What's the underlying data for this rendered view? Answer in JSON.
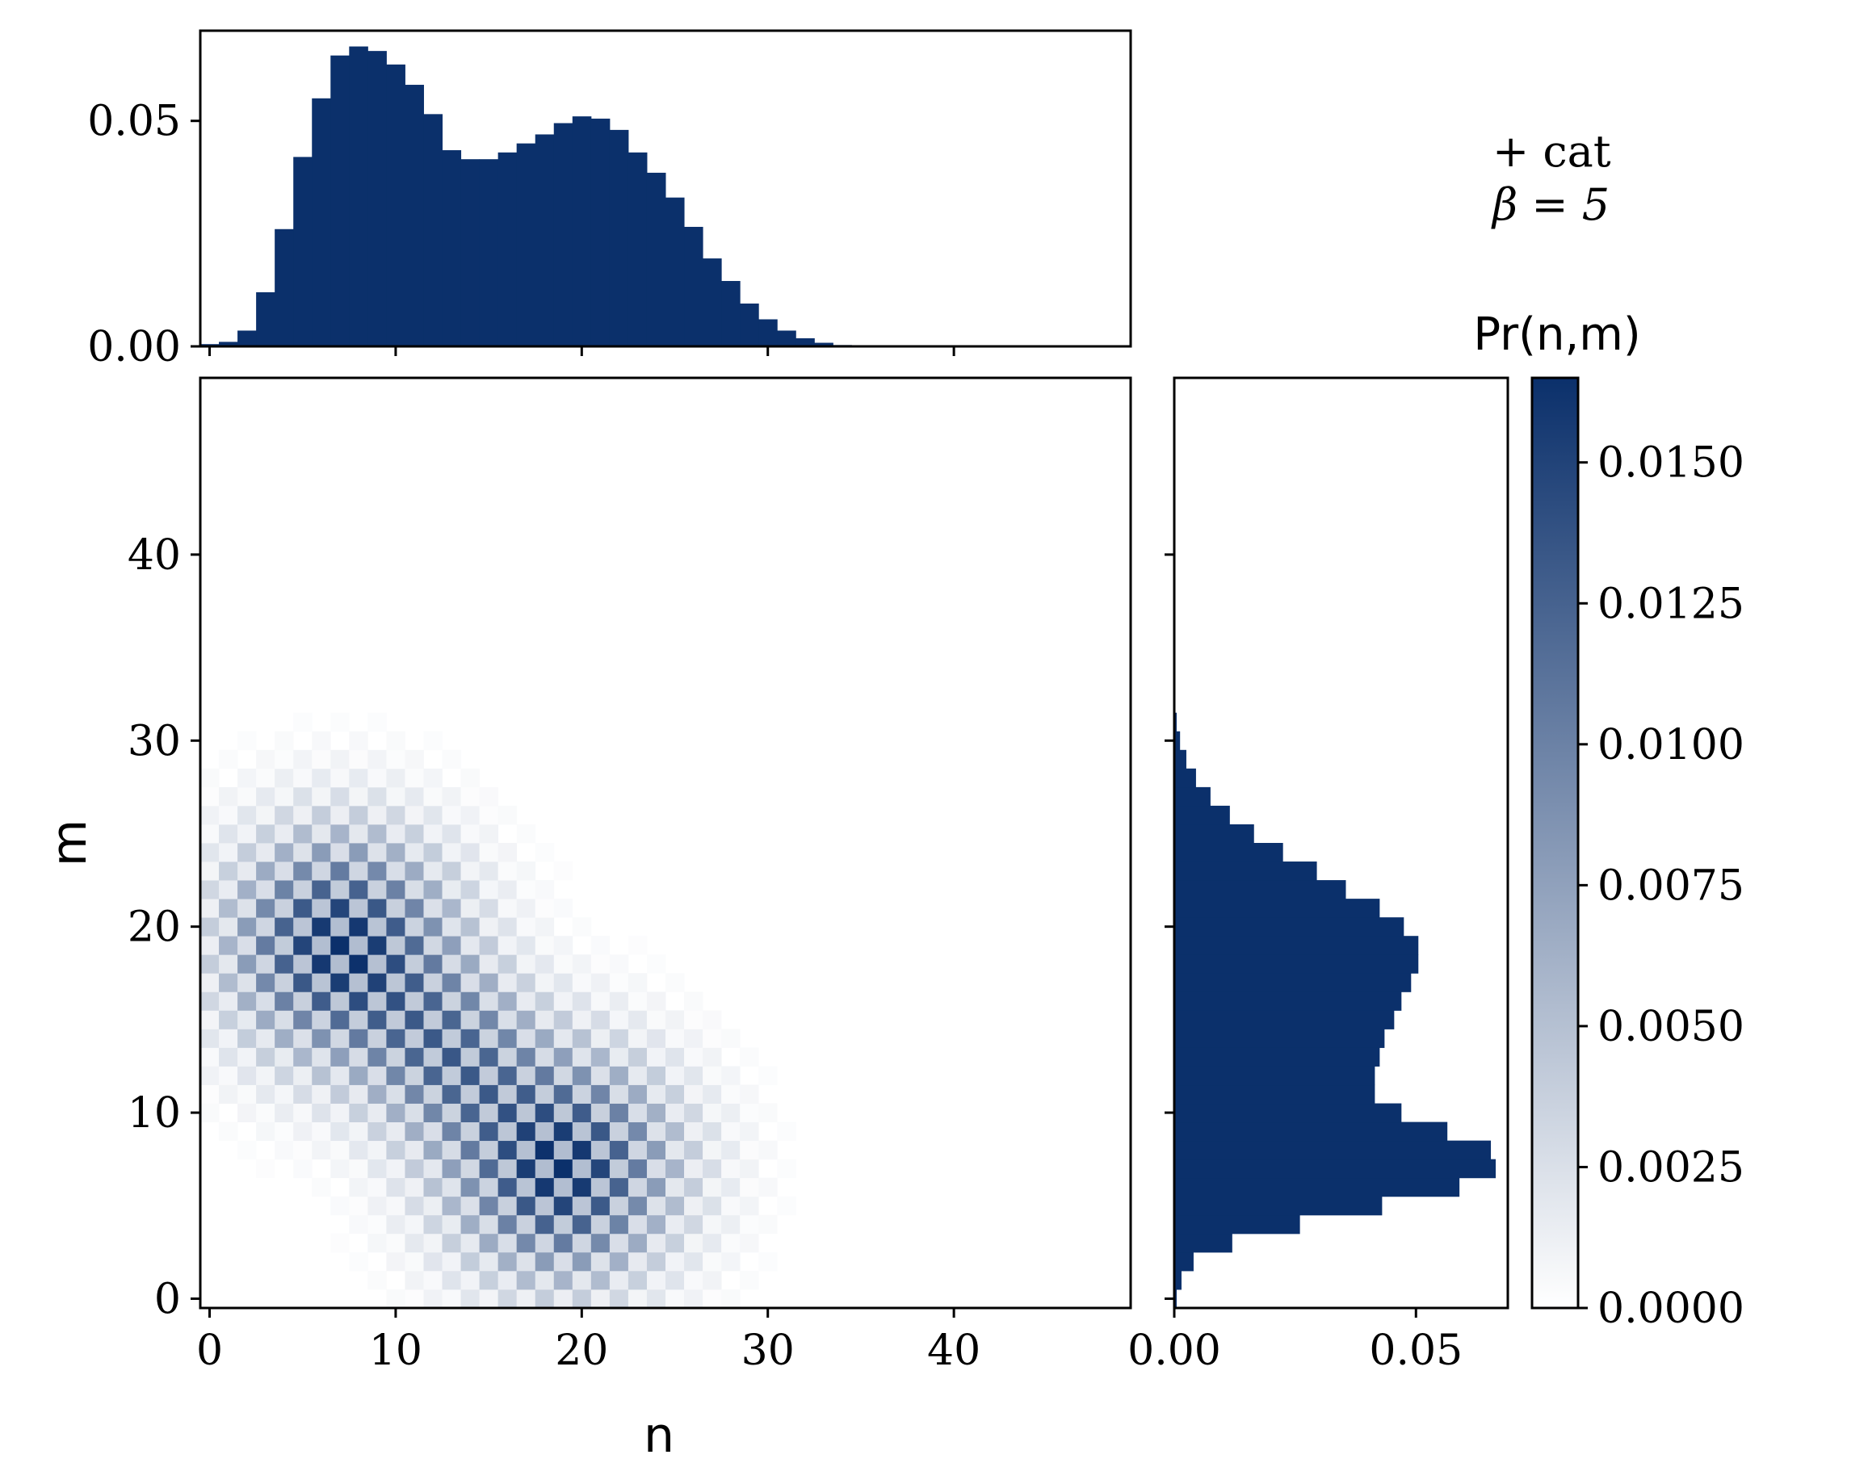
{
  "chart_data": [
    {
      "name": "joint-heatmap",
      "type": "heatmap",
      "xlabel": "n",
      "ylabel": "m",
      "xlim": [
        -0.5,
        49.5
      ],
      "ylim": [
        -0.5,
        49.5
      ],
      "xticks": [
        "0",
        "10",
        "20",
        "30",
        "40"
      ],
      "yticks": [
        "0",
        "10",
        "20",
        "30",
        "40"
      ],
      "model": {
        "kind": "two displaced Poissonian blobs with checkerboard interference, max value ~0.0165",
        "blobs": [
          {
            "center_n": 7,
            "center_m": 19,
            "spread": 4.2
          },
          {
            "center_n": 19,
            "center_m": 7,
            "spread": 4.2
          }
        ],
        "cross_term_center": [
          13,
          13
        ],
        "vmax": 0.0165
      }
    },
    {
      "name": "marginal-n",
      "type": "bar",
      "x_start": 0,
      "bin_width": 1,
      "ylim": [
        0,
        0.07
      ],
      "yticks": [
        "0.00",
        "0.05"
      ],
      "values": [
        0.0005,
        0.001,
        0.0035,
        0.012,
        0.026,
        0.042,
        0.055,
        0.0645,
        0.0665,
        0.0655,
        0.0625,
        0.058,
        0.0515,
        0.0435,
        0.0415,
        0.0415,
        0.043,
        0.045,
        0.047,
        0.0495,
        0.051,
        0.0505,
        0.048,
        0.043,
        0.0385,
        0.033,
        0.0265,
        0.0195,
        0.0145,
        0.0095,
        0.006,
        0.0035,
        0.0018,
        0.0008,
        0.0003,
        0.0001
      ]
    },
    {
      "name": "marginal-m",
      "type": "bar",
      "orientation": "horizontal",
      "x_start": 0,
      "bin_width": 1,
      "xlim": [
        0,
        0.069
      ],
      "xticks": [
        "0.00",
        "0.05"
      ],
      "values": [
        0.0005,
        0.0015,
        0.004,
        0.012,
        0.026,
        0.043,
        0.059,
        0.0665,
        0.0655,
        0.0565,
        0.047,
        0.0415,
        0.0415,
        0.0425,
        0.0435,
        0.0455,
        0.047,
        0.049,
        0.0505,
        0.0505,
        0.0475,
        0.0425,
        0.0355,
        0.0295,
        0.0225,
        0.0165,
        0.0115,
        0.0075,
        0.0045,
        0.0025,
        0.0012,
        0.0005
      ]
    },
    {
      "name": "colorbar",
      "type": "colorbar",
      "label": "Pr(n,m)",
      "range": [
        0,
        0.0165
      ],
      "ticks": [
        "0.0000",
        "0.0025",
        "0.0050",
        "0.0075",
        "0.0100",
        "0.0125",
        "0.0150"
      ],
      "tick_values": [
        0,
        0.0025,
        0.005,
        0.0075,
        0.01,
        0.0125,
        0.015
      ]
    }
  ],
  "annotation": {
    "line1": "+ cat",
    "line2": "β = 5"
  },
  "colors": {
    "bar": "#0b306b",
    "cmap_high": "#0b306b",
    "cmap_low": "#ffffff",
    "axis": "#000000"
  }
}
